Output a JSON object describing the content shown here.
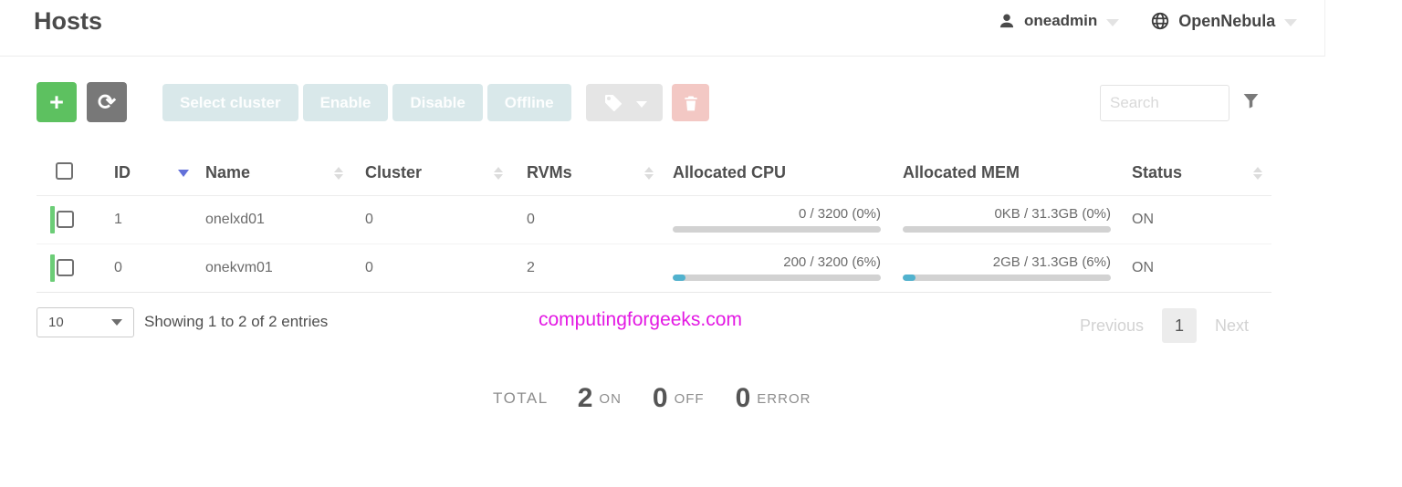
{
  "page": {
    "title": "Hosts"
  },
  "topbar": {
    "user": {
      "label": "oneadmin"
    },
    "zone": {
      "label": "OpenNebula"
    }
  },
  "toolbar": {
    "create_label": "+",
    "refresh_glyph": "⟳",
    "disabled_buttons": [
      "Select cluster",
      "Enable",
      "Disable",
      "Offline"
    ],
    "search": {
      "placeholder": "Search",
      "value": ""
    }
  },
  "table": {
    "columns": [
      {
        "label": "ID",
        "sort": "desc"
      },
      {
        "label": "Name",
        "sort": "both"
      },
      {
        "label": "Cluster",
        "sort": "both"
      },
      {
        "label": "RVMs",
        "sort": "both"
      },
      {
        "label": "Allocated CPU",
        "sort": "none"
      },
      {
        "label": "Allocated MEM",
        "sort": "none"
      },
      {
        "label": "Status",
        "sort": "both"
      }
    ],
    "rows": [
      {
        "id": "1",
        "name": "onelxd01",
        "cluster": "0",
        "rvms": "0",
        "cpu_text": "0 / 3200 (0%)",
        "cpu_pct": 0,
        "mem_text": "0KB / 31.3GB (0%)",
        "mem_pct": 0,
        "status": "ON"
      },
      {
        "id": "0",
        "name": "onekvm01",
        "cluster": "0",
        "rvms": "2",
        "cpu_text": "200 / 3200 (6%)",
        "cpu_pct": 6,
        "mem_text": "2GB / 31.3GB (6%)",
        "mem_pct": 6,
        "status": "ON"
      }
    ]
  },
  "footer": {
    "page_length": "10",
    "showing_text": "Showing 1 to 2 of 2 entries",
    "watermark": "computingforgeeks.com",
    "pagination": {
      "previous": "Previous",
      "current": "1",
      "next": "Next"
    }
  },
  "totals": {
    "total_label": "TOTAL",
    "on": {
      "value": "2",
      "label": "ON"
    },
    "off": {
      "value": "0",
      "label": "OFF"
    },
    "error": {
      "value": "0",
      "label": "ERROR"
    }
  },
  "colors": {
    "accent_green": "#5dc160",
    "row_indicator_green": "#6ccd77",
    "progress_fill_blue": "#51b2ce",
    "danger_soft_red": "#f3c8c4",
    "disabled_button_bg": "#d9e8ea",
    "watermark_magenta": "#e318e3",
    "sort_active_blue": "#6371d9"
  }
}
